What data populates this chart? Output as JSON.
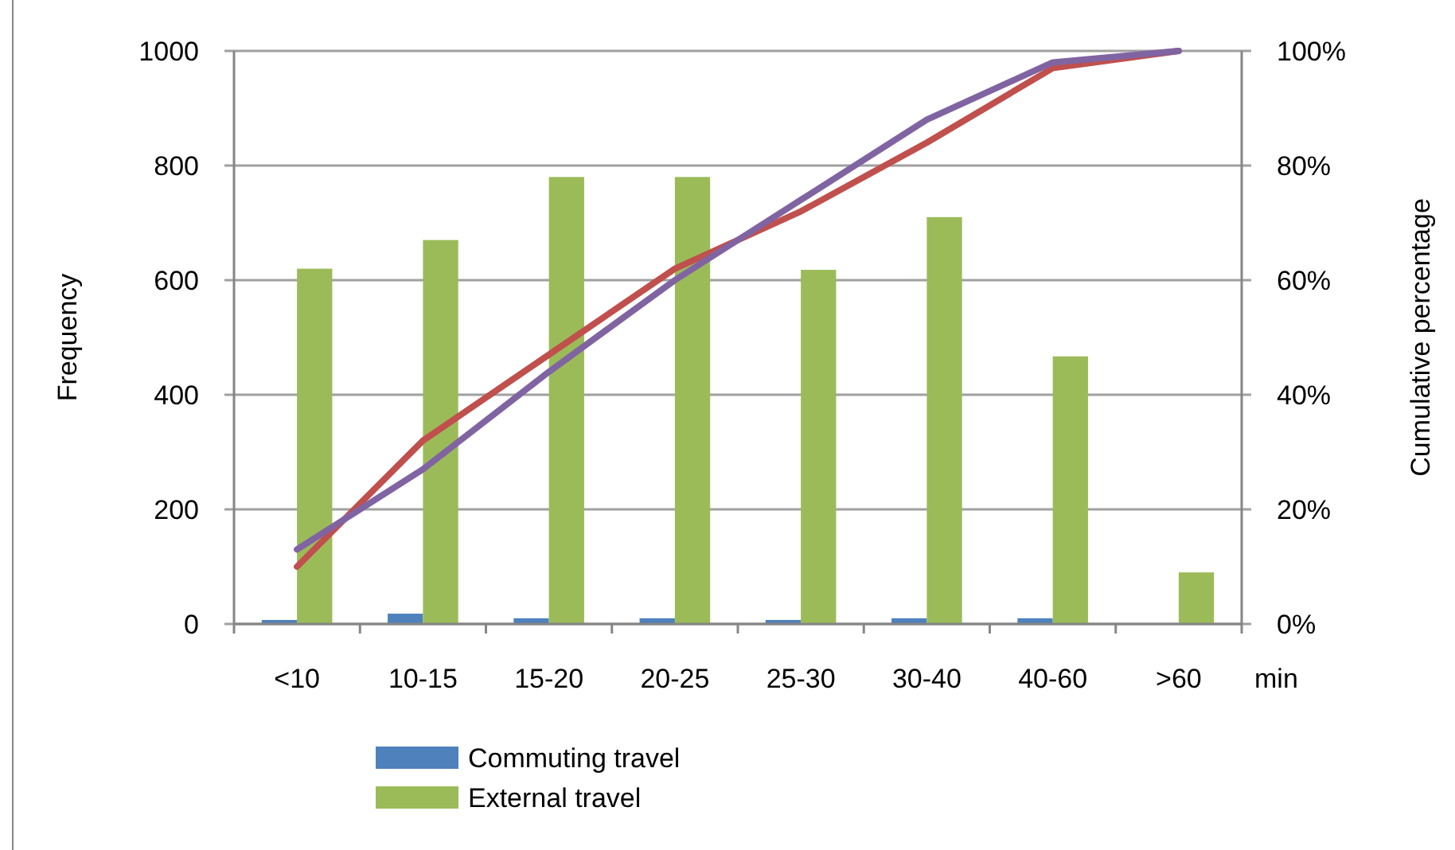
{
  "chart_data": {
    "type": "bar",
    "categories": [
      "<10",
      "10-15",
      "15-20",
      "20-25",
      "25-30",
      "30-40",
      "40-60",
      ">60"
    ],
    "xlabel": "min",
    "ylabel": "Frequency",
    "y2label": "Cumulative percentage",
    "series": [
      {
        "name": "Commuting travel",
        "color": "#4f81bd",
        "values": [
          7,
          18,
          10,
          10,
          7,
          10,
          10,
          0
        ]
      },
      {
        "name": "External travel",
        "color": "#9bbb59",
        "values": [
          620,
          670,
          780,
          780,
          618,
          710,
          467,
          90
        ]
      },
      {
        "type": "line",
        "axis": "y2",
        "color": "#c0504d",
        "values": [
          10,
          32,
          47,
          62,
          72,
          84,
          97,
          100
        ]
      },
      {
        "type": "line",
        "axis": "y2",
        "color": "#8064a2",
        "values": [
          13,
          27,
          44,
          60,
          74,
          88,
          98,
          100
        ]
      }
    ],
    "ylim": [
      0,
      1000
    ],
    "yticks": [
      0,
      200,
      400,
      600,
      800,
      1000
    ],
    "y2lim": [
      0,
      100
    ],
    "y2ticks": [
      {
        "value": 0,
        "label": "0%"
      },
      {
        "value": 20,
        "label": "20%"
      },
      {
        "value": 40,
        "label": "40%"
      },
      {
        "value": 60,
        "label": "60%"
      },
      {
        "value": 80,
        "label": "80%"
      },
      {
        "value": 100,
        "label": "100%"
      }
    ],
    "grid": "y",
    "legend": "bottom",
    "marker": "none",
    "line_style": "solid"
  }
}
